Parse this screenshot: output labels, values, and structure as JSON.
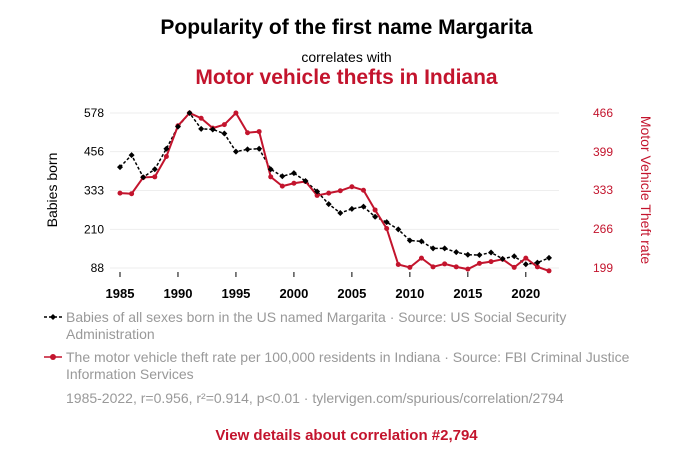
{
  "header": {
    "title": "Popularity of the first name Margarita",
    "subtitle": "correlates with",
    "title2": "Motor vehicle thefts in Indiana"
  },
  "legend": {
    "series1": "Babies of all sexes born in the US named Margarita · Source: US Social Security Administration",
    "series2": "The motor vehicle theft rate per 100,000 residents in Indiana · Source: FBI Criminal Justice Information Services"
  },
  "meta": "1985-2022, r=0.956, r²=0.914, p<0.01 · tylervigen.com/spurious/correlation/2794",
  "link": "View details about correlation #2,794",
  "colors": {
    "series1": "#000000",
    "series2": "#c3142d"
  },
  "chart_data": {
    "type": "line",
    "xlabel": "",
    "ylabel": "Babies born",
    "y2label": "Motor Vehicle Theft rate",
    "x": [
      1985,
      1986,
      1987,
      1988,
      1989,
      1990,
      1991,
      1992,
      1993,
      1994,
      1995,
      1996,
      1997,
      1998,
      1999,
      2000,
      2001,
      2002,
      2003,
      2004,
      2005,
      2006,
      2007,
      2008,
      2009,
      2010,
      2011,
      2012,
      2013,
      2014,
      2015,
      2016,
      2017,
      2018,
      2019,
      2020,
      2021,
      2022
    ],
    "xticks": [
      1985,
      1990,
      1995,
      2000,
      2005,
      2010,
      2015,
      2020
    ],
    "xlim": [
      1985,
      2022
    ],
    "ylim": [
      88,
      578
    ],
    "yticks": [
      88,
      210,
      333,
      456,
      578
    ],
    "y2lim": [
      199,
      466
    ],
    "y2ticks": [
      199,
      266,
      333,
      399,
      466
    ],
    "series": [
      {
        "name": "Babies of all sexes born in the US named Margarita",
        "axis": "left",
        "values": [
          407,
          445,
          375,
          400,
          465,
          535,
          578,
          528,
          526,
          513,
          456,
          463,
          465,
          400,
          378,
          388,
          363,
          330,
          290,
          262,
          275,
          282,
          250,
          233,
          210,
          175,
          172,
          150,
          150,
          138,
          130,
          129,
          137,
          117,
          125,
          100,
          105,
          120
        ]
      },
      {
        "name": "The motor vehicle theft rate per 100,000 residents in Indiana",
        "axis": "right",
        "values": [
          328,
          327,
          355,
          356,
          391,
          444,
          466,
          457,
          440,
          446,
          466,
          432,
          434,
          356,
          340,
          345,
          348,
          324,
          328,
          332,
          339,
          333,
          299,
          267,
          205,
          200,
          216,
          201,
          206,
          201,
          197,
          207,
          210,
          214,
          200,
          216,
          201,
          194
        ]
      }
    ]
  }
}
